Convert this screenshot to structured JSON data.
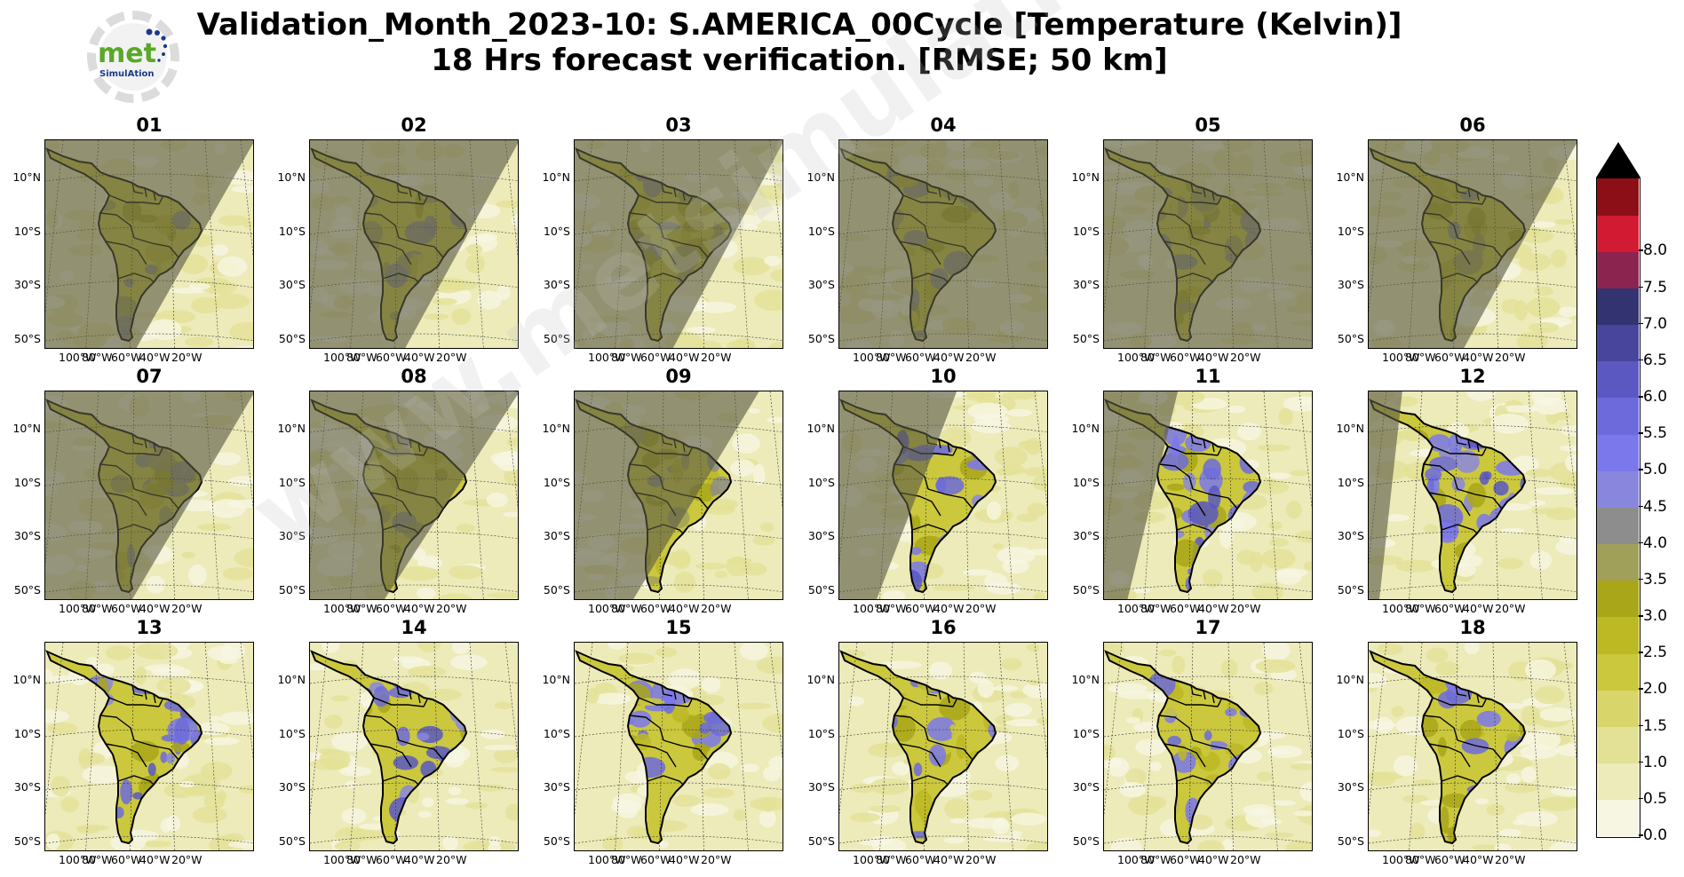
{
  "title": {
    "line1": "Validation_Month_2023-10: S.AMERICA_00Cycle [Temperature (Kelvin)]",
    "line2": "18 Hrs forecast verification.  [RMSE; 50 km]"
  },
  "logo": {
    "word": "met",
    "sub": "SimulAtion"
  },
  "watermark": "www.metsimulation.com",
  "panels": [
    {
      "label": "01",
      "night_fraction": 0.86,
      "dominant": "olive"
    },
    {
      "label": "02",
      "night_fraction": 0.9,
      "dominant": "olive"
    },
    {
      "label": "03",
      "night_fraction": 0.93,
      "dominant": "olive"
    },
    {
      "label": "04",
      "night_fraction": 1.0,
      "dominant": "olive"
    },
    {
      "label": "05",
      "night_fraction": 1.0,
      "dominant": "olive"
    },
    {
      "label": "06",
      "night_fraction": 0.9,
      "dominant": "olive"
    },
    {
      "label": "07",
      "night_fraction": 0.82,
      "dominant": "olive"
    },
    {
      "label": "08",
      "night_fraction": 0.7,
      "dominant": "olive"
    },
    {
      "label": "09",
      "night_fraction": 0.55,
      "dominant": "olive"
    },
    {
      "label": "10",
      "night_fraction": 0.35,
      "dominant": "blue"
    },
    {
      "label": "11",
      "night_fraction": 0.22,
      "dominant": "blue"
    },
    {
      "label": "12",
      "night_fraction": 0.1,
      "dominant": "blue"
    },
    {
      "label": "13",
      "night_fraction": 0.0,
      "dominant": "blue"
    },
    {
      "label": "14",
      "night_fraction": 0.0,
      "dominant": "blue"
    },
    {
      "label": "15",
      "night_fraction": 0.0,
      "dominant": "mixed"
    },
    {
      "label": "16",
      "night_fraction": 0.0,
      "dominant": "mixed"
    },
    {
      "label": "17",
      "night_fraction": 0.0,
      "dominant": "mixed"
    },
    {
      "label": "18",
      "night_fraction": 0.0,
      "dominant": "mixed"
    }
  ],
  "lat_labels": [
    "10°N",
    "10°S",
    "30°S",
    "50°S"
  ],
  "lon_labels": [
    "100°W",
    "80°W",
    "60°W",
    "40°W",
    "20°W"
  ],
  "colorbar": {
    "ticks": [
      "0.0",
      "0.5",
      "1.0",
      "1.5",
      "2.0",
      "2.5",
      "3.0",
      "3.5",
      "4.0",
      "4.5",
      "5.0",
      "5.5",
      "6.0",
      "6.5",
      "7.0",
      "7.5",
      "8.0"
    ],
    "colors": [
      "#f7f6e2",
      "#ecebb9",
      "#e3e196",
      "#d8d56b",
      "#cbc83d",
      "#bdb925",
      "#a9a619",
      "#a1a05a",
      "#8d8d8d",
      "#8987dd",
      "#7b78ec",
      "#6d6bdb",
      "#5b58c2",
      "#47459c",
      "#323370",
      "#8c2450",
      "#d21b33",
      "#8c0e16"
    ],
    "overflow_color": "#000000"
  }
}
